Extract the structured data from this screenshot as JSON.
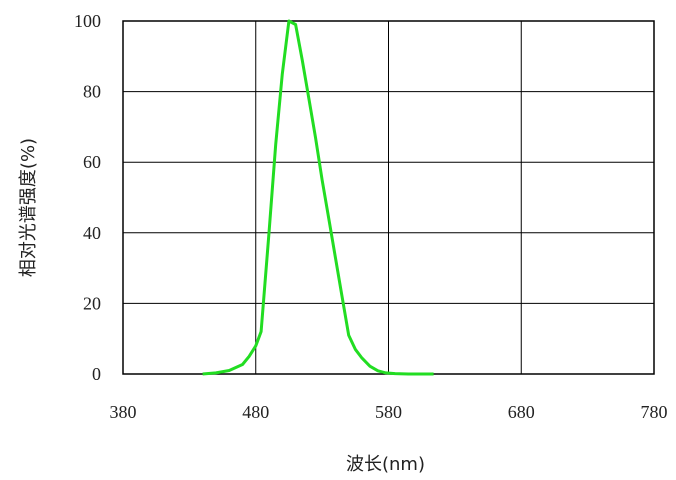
{
  "chart_data": {
    "type": "line",
    "title": "",
    "xlabel": "波长(nm)",
    "ylabel": "相对光谱强度(%)",
    "xlim": [
      380,
      780
    ],
    "ylim": [
      0,
      100
    ],
    "xticks": [
      380,
      480,
      580,
      680,
      780
    ],
    "yticks": [
      0,
      20,
      40,
      60,
      80,
      100
    ],
    "grid": true,
    "series": [
      {
        "name": "",
        "color": "#22dd22",
        "x": [
          440,
          450,
          460,
          470,
          475,
          480,
          484,
          490,
          495,
          500,
          505,
          510,
          515,
          520,
          525,
          530,
          535,
          540,
          545,
          550,
          555,
          560,
          566,
          572,
          578,
          585,
          595,
          605,
          614
        ],
        "y": [
          0,
          0.3,
          1,
          2.7,
          5,
          8,
          12,
          40,
          65,
          85,
          100,
          99,
          89,
          78,
          67,
          55,
          44,
          33,
          22,
          11,
          7,
          4.5,
          2.2,
          0.9,
          0.3,
          0.1,
          0,
          0,
          0
        ]
      }
    ]
  }
}
